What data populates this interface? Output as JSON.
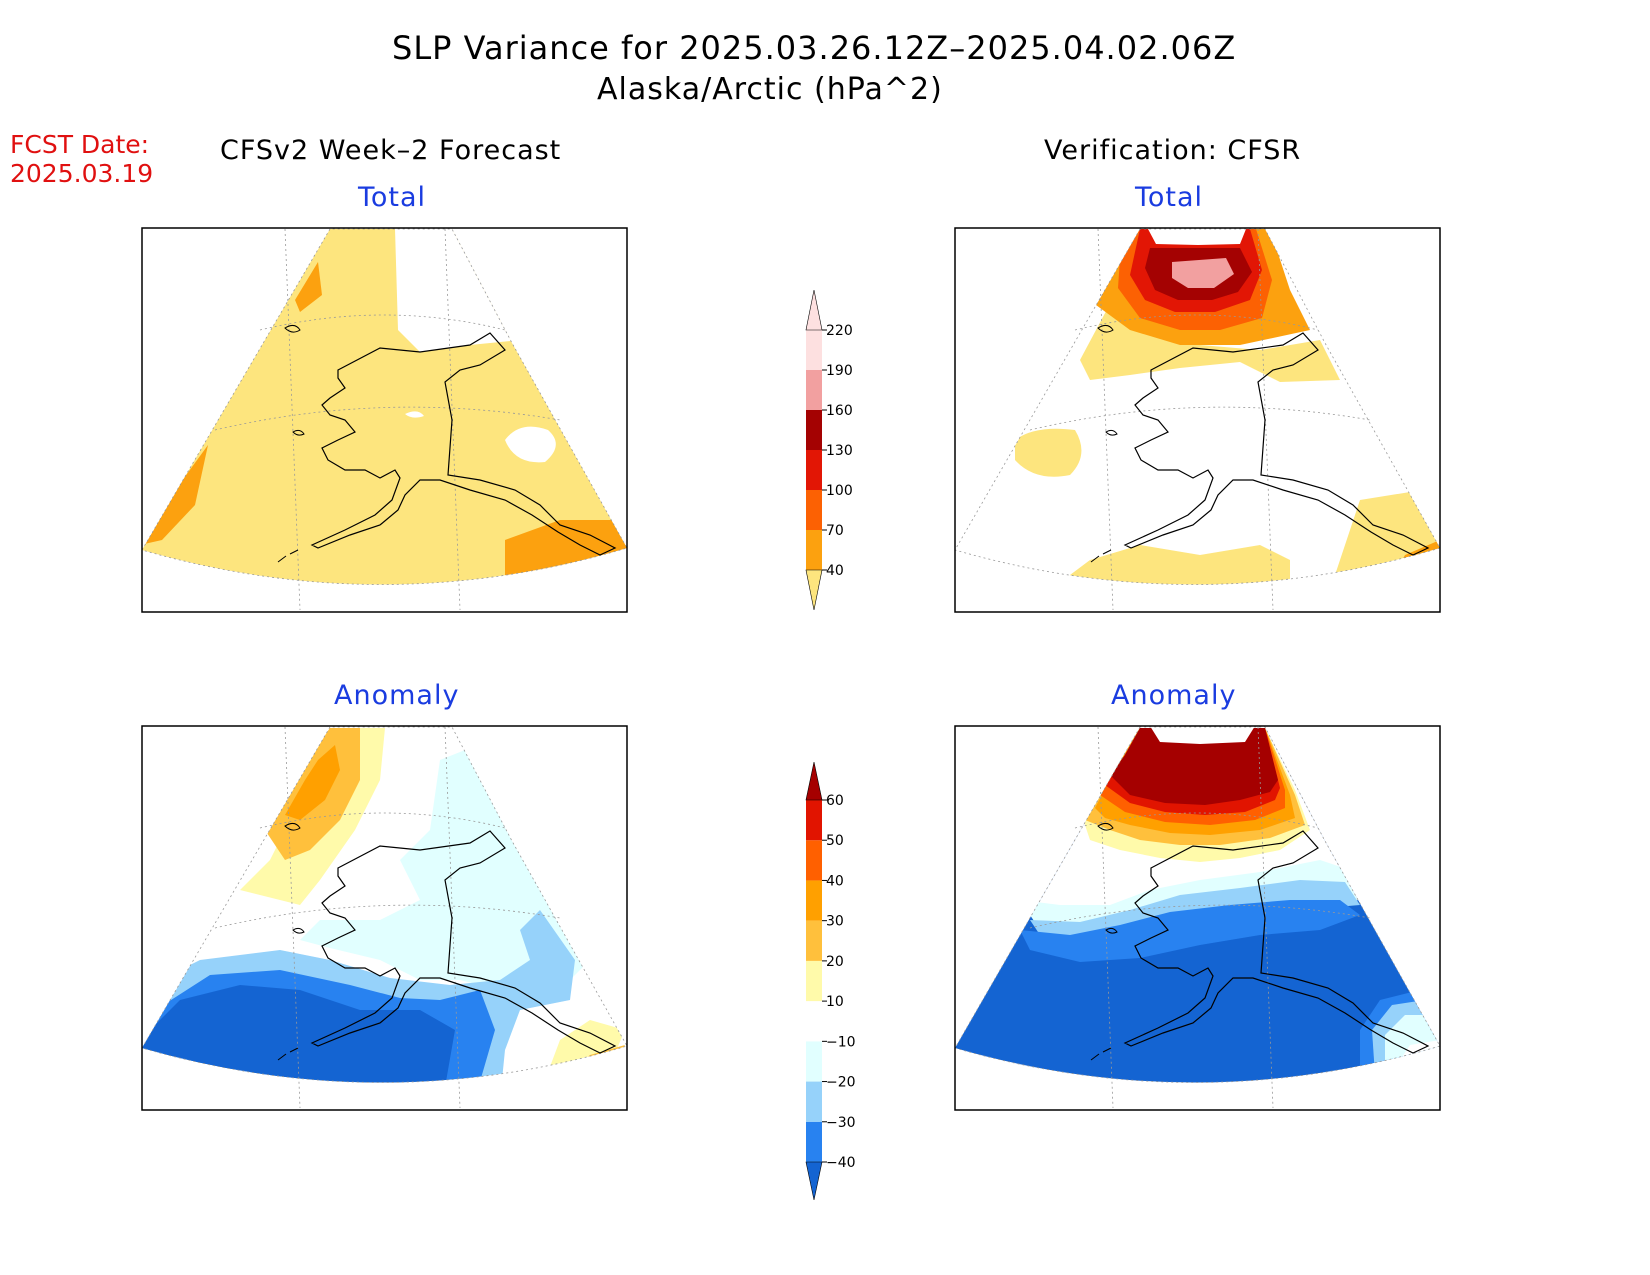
{
  "title": "SLP Variance for 2025.03.26.12Z–2025.04.02.06Z",
  "subtitle": "Alaska/Arctic (hPa^2)",
  "fcst_date": {
    "label": "FCST Date:",
    "value": "2025.03.19"
  },
  "columns": {
    "left_header": "CFSv2 Week–2 Forecast",
    "right_header": "Verification: CFSR"
  },
  "panels": {
    "top_left_label": "Total",
    "top_right_label": "Total",
    "bottom_left_label": "Anomaly",
    "bottom_right_label": "Anomaly"
  },
  "colorbars": {
    "total": {
      "levels": [
        "40",
        "70",
        "100",
        "130",
        "160",
        "190",
        "220"
      ],
      "colors": [
        "#fde57e",
        "#fca10f",
        "#fc6103",
        "#e21605",
        "#a40202",
        "#f2a0a0",
        "#fde0e0"
      ]
    },
    "anomaly": {
      "levels": [
        "−40",
        "−30",
        "−20",
        "−10",
        "10",
        "20",
        "30",
        "40",
        "50",
        "60"
      ],
      "colors": [
        "#1464d2",
        "#2882f0",
        "#96d2fa",
        "#e1ffff",
        "#ffffff",
        "#fffaaa",
        "#ffc03c",
        "#ffa000",
        "#ff6000",
        "#e11400",
        "#a50000"
      ]
    }
  }
}
